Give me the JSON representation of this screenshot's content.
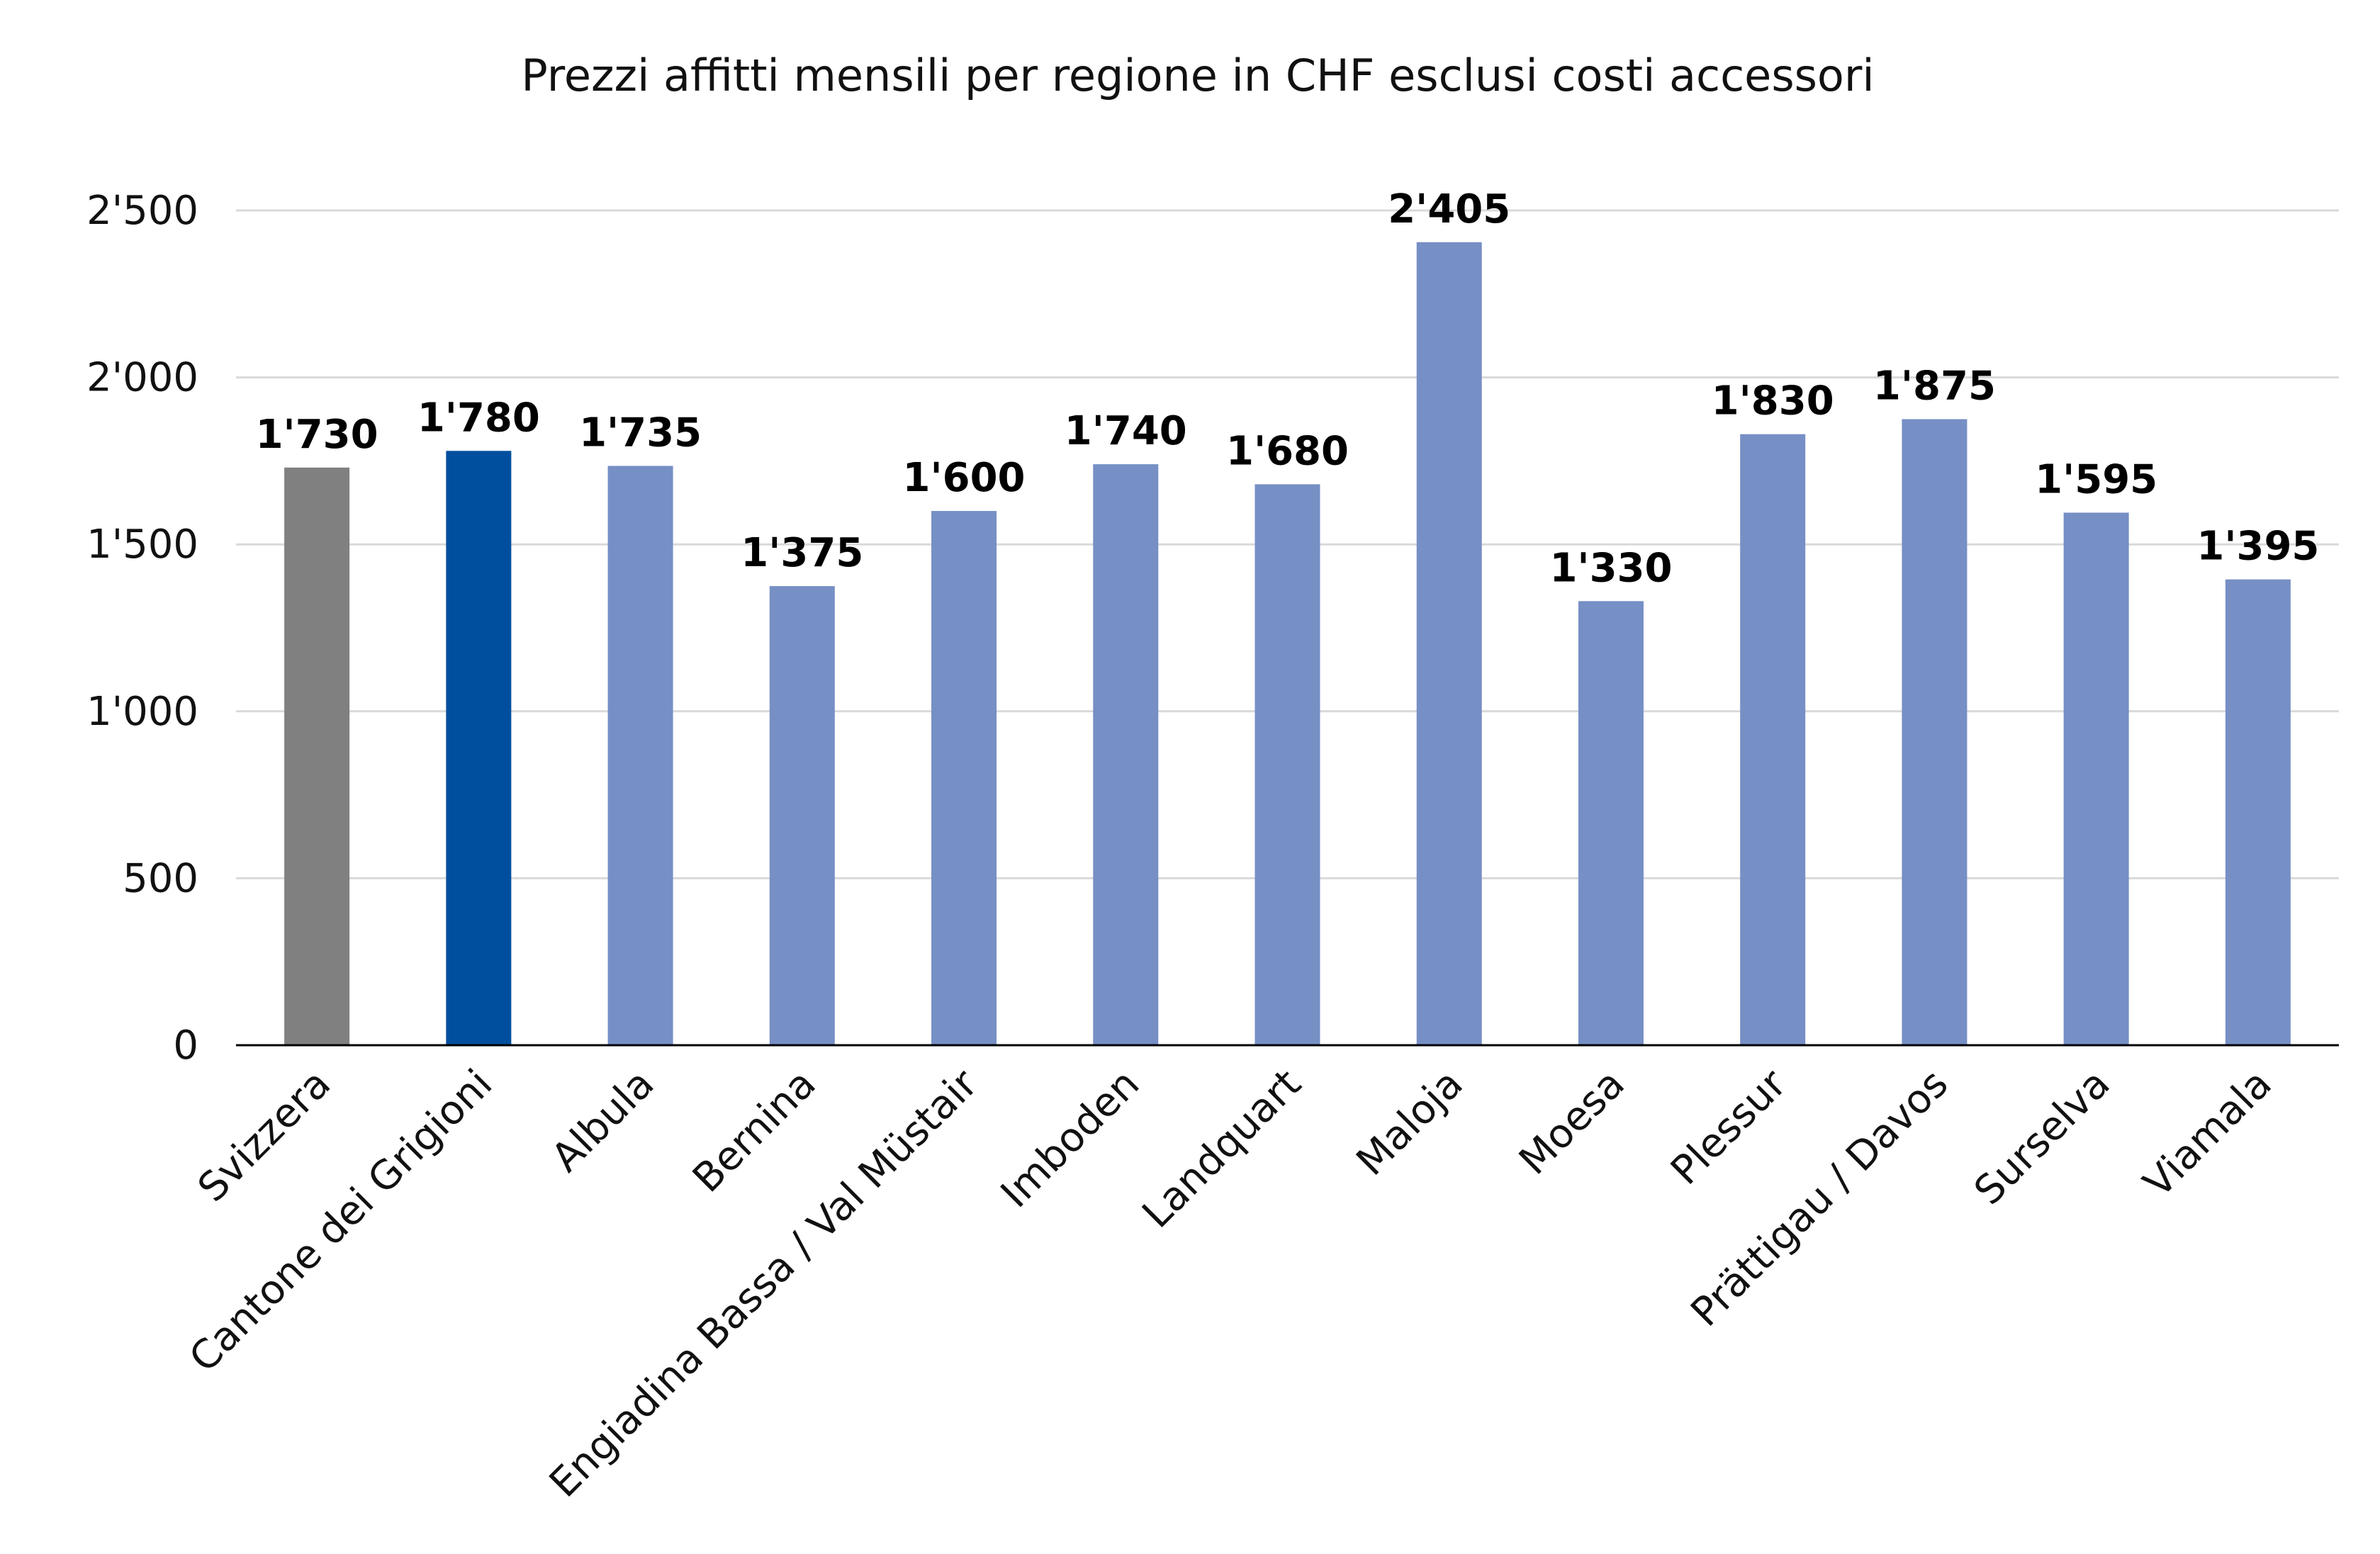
{
  "chart_data": {
    "type": "bar",
    "title": "Prezzi affitti mensili per regione in CHF esclusi costi accessori",
    "categories": [
      "Svizzera",
      "Cantone dei Grigioni",
      "Albula",
      "Bernina",
      "Engiadina Bassa / Val Müstair",
      "Imboden",
      "Landquart",
      "Maloja",
      "Moesa",
      "Plessur",
      "Prättigau / Davos",
      "Surselva",
      "Viamala"
    ],
    "values": [
      1730,
      1780,
      1735,
      1375,
      1600,
      1740,
      1680,
      2405,
      1330,
      1830,
      1875,
      1595,
      1395
    ],
    "data_labels": [
      "1'730",
      "1'780",
      "1'735",
      "1'375",
      "1'600",
      "1'740",
      "1'680",
      "2'405",
      "1'330",
      "1'830",
      "1'875",
      "1'595",
      "1'395"
    ],
    "bar_colors": [
      "#808080",
      "#004f9e",
      "#768fc5",
      "#768fc5",
      "#768fc5",
      "#768fc5",
      "#768fc5",
      "#768fc5",
      "#768fc5",
      "#768fc5",
      "#768fc5",
      "#768fc5",
      "#768fc5"
    ],
    "ylim": [
      0,
      2500
    ],
    "yticks": [
      0,
      500,
      1000,
      1500,
      2000,
      2500
    ],
    "ytick_labels": [
      "0",
      "500",
      "1'000",
      "1'500",
      "2'000",
      "2'500"
    ],
    "grid": true,
    "xlabel": "",
    "ylabel": ""
  }
}
